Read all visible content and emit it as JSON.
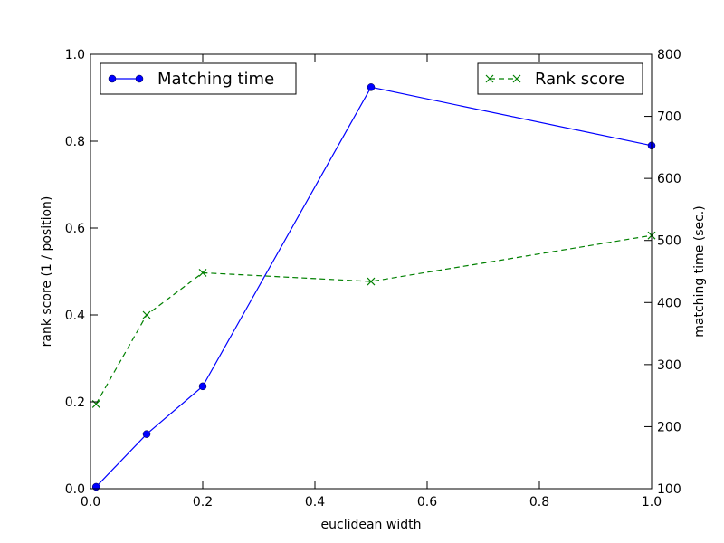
{
  "chart_data": {
    "type": "line",
    "title": "",
    "xlabel": "euclidean width",
    "ylabel_left": "rank score (1 / position)",
    "ylabel_right": "matching time (sec.)",
    "xlim": [
      0,
      1.0
    ],
    "ylim_left": [
      0,
      1.0
    ],
    "ylim_right": [
      100,
      800
    ],
    "x_ticks": [
      "0.0",
      "0.2",
      "0.4",
      "0.6",
      "0.8",
      "1.0"
    ],
    "x_tick_values": [
      0,
      0.2,
      0.4,
      0.6,
      0.8,
      1.0
    ],
    "y_left_ticks": [
      "0.0",
      "0.2",
      "0.4",
      "0.6",
      "0.8",
      "1.0"
    ],
    "y_left_tick_values": [
      0,
      0.2,
      0.4,
      0.6,
      0.8,
      1.0
    ],
    "y_right_ticks": [
      "100",
      "200",
      "300",
      "400",
      "500",
      "600",
      "700",
      "800"
    ],
    "y_right_tick_values": [
      100,
      200,
      300,
      400,
      500,
      600,
      700,
      800
    ],
    "grid": false,
    "series": [
      {
        "name": "Matching time",
        "axis": "right",
        "color": "#0000ff",
        "line_style": "solid",
        "marker": "circle",
        "legend_position": "top-left",
        "x": [
          0.01,
          0.1,
          0.2,
          0.5,
          1.0
        ],
        "values": [
          103,
          188,
          265,
          747,
          653
        ]
      },
      {
        "name": "Rank score",
        "axis": "left",
        "color": "#008000",
        "line_style": "dashed",
        "marker": "x",
        "legend_position": "top-right",
        "x": [
          0.01,
          0.1,
          0.2,
          0.5,
          1.0
        ],
        "values": [
          0.195,
          0.4,
          0.497,
          0.477,
          0.583
        ]
      }
    ]
  }
}
